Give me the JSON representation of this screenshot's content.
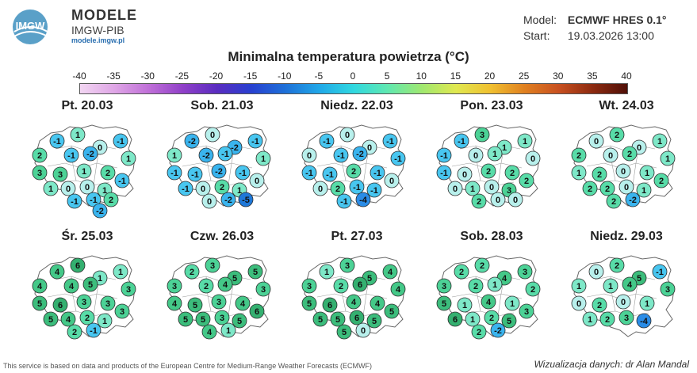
{
  "header": {
    "logo_text": "IMGW",
    "brand_title": "MODELE",
    "brand_sub": "IMGW-PIB",
    "brand_url": "modele.imgw.pl",
    "model_key": "Model:",
    "model_value": "ECMWF HRES 0.1°",
    "start_key": "Start:",
    "start_value": "19.03.2026 13:00"
  },
  "map_title": "Minimalna temperatura powietrza (°C)",
  "colorbar": {
    "ticks": [
      "-40",
      "-35",
      "-30",
      "-25",
      "-20",
      "-15",
      "-10",
      "-5",
      "0",
      "5",
      "10",
      "15",
      "20",
      "25",
      "30",
      "35",
      "40"
    ],
    "colors": [
      "#f2d6f2",
      "#dfa6e6",
      "#c070d8",
      "#9040c8",
      "#5a2cc0",
      "#2840d0",
      "#1e70d8",
      "#20a8e8",
      "#30d8e0",
      "#60e8b0",
      "#a0e870",
      "#e0e850",
      "#f0c030",
      "#e08020",
      "#c85020",
      "#8c2a10",
      "#501008"
    ]
  },
  "days": [
    {
      "label": "Pt. 20.03",
      "values": [
        -1,
        1,
        0,
        2,
        -1,
        -2,
        -1,
        3,
        3,
        1,
        2,
        1,
        1,
        0,
        0,
        1,
        -1,
        -1,
        -1,
        2,
        -2
      ]
    },
    {
      "label": "Sob. 21.03",
      "values": [
        -2,
        0,
        -2,
        1,
        -2,
        -1,
        -1,
        -1,
        -1,
        -2,
        -1,
        1,
        -1,
        0,
        2,
        1,
        0,
        0,
        -2,
        -5
      ]
    },
    {
      "label": "Niedz. 22.03",
      "values": [
        -1,
        0,
        0,
        0,
        -1,
        -2,
        -1,
        -1,
        -1,
        2,
        -1,
        -1,
        0,
        2,
        -1,
        -1,
        0,
        -1,
        -4
      ]
    },
    {
      "label": "Pon. 23.03",
      "values": [
        -1,
        3,
        1,
        -1,
        0,
        1,
        1,
        -1,
        0,
        2,
        2,
        0,
        0,
        1,
        0,
        3,
        2,
        2,
        0,
        0
      ]
    },
    {
      "label": "Wt. 24.03",
      "values": [
        0,
        2,
        0,
        2,
        0,
        2,
        1,
        1,
        2,
        0,
        1,
        1,
        2,
        2,
        0,
        1,
        2,
        2,
        -2
      ]
    },
    {
      "label": "Śr. 25.03",
      "values": [
        4,
        6,
        1,
        4,
        4,
        5,
        1,
        5,
        6,
        3,
        3,
        3,
        5,
        4,
        2,
        1,
        3,
        2,
        -1
      ]
    },
    {
      "label": "Czw. 26.03",
      "values": [
        2,
        3,
        5,
        3,
        2,
        4,
        5,
        4,
        5,
        3,
        4,
        3,
        5,
        5,
        3,
        5,
        6,
        4,
        1
      ]
    },
    {
      "label": "Pt. 27.03",
      "values": [
        1,
        3,
        5,
        3,
        2,
        6,
        4,
        5,
        6,
        4,
        4,
        4,
        5,
        5,
        6,
        5,
        5,
        5,
        0
      ]
    },
    {
      "label": "Sob. 28.03",
      "values": [
        2,
        2,
        4,
        3,
        2,
        1,
        3,
        5,
        1,
        4,
        1,
        2,
        6,
        1,
        2,
        5,
        3,
        2,
        -2
      ]
    },
    {
      "label": "Niedz. 29.03",
      "values": [
        0,
        2,
        5,
        1,
        1,
        4,
        -1,
        0,
        2,
        0,
        1,
        3,
        1,
        2,
        3,
        -4
      ]
    }
  ],
  "footer": {
    "left": "This service is based on data and products of the European Centre for Medium-Range Weather Forecasts (ECMWF)",
    "right": "Wizualizacja danych: dr Alan Mandal"
  }
}
